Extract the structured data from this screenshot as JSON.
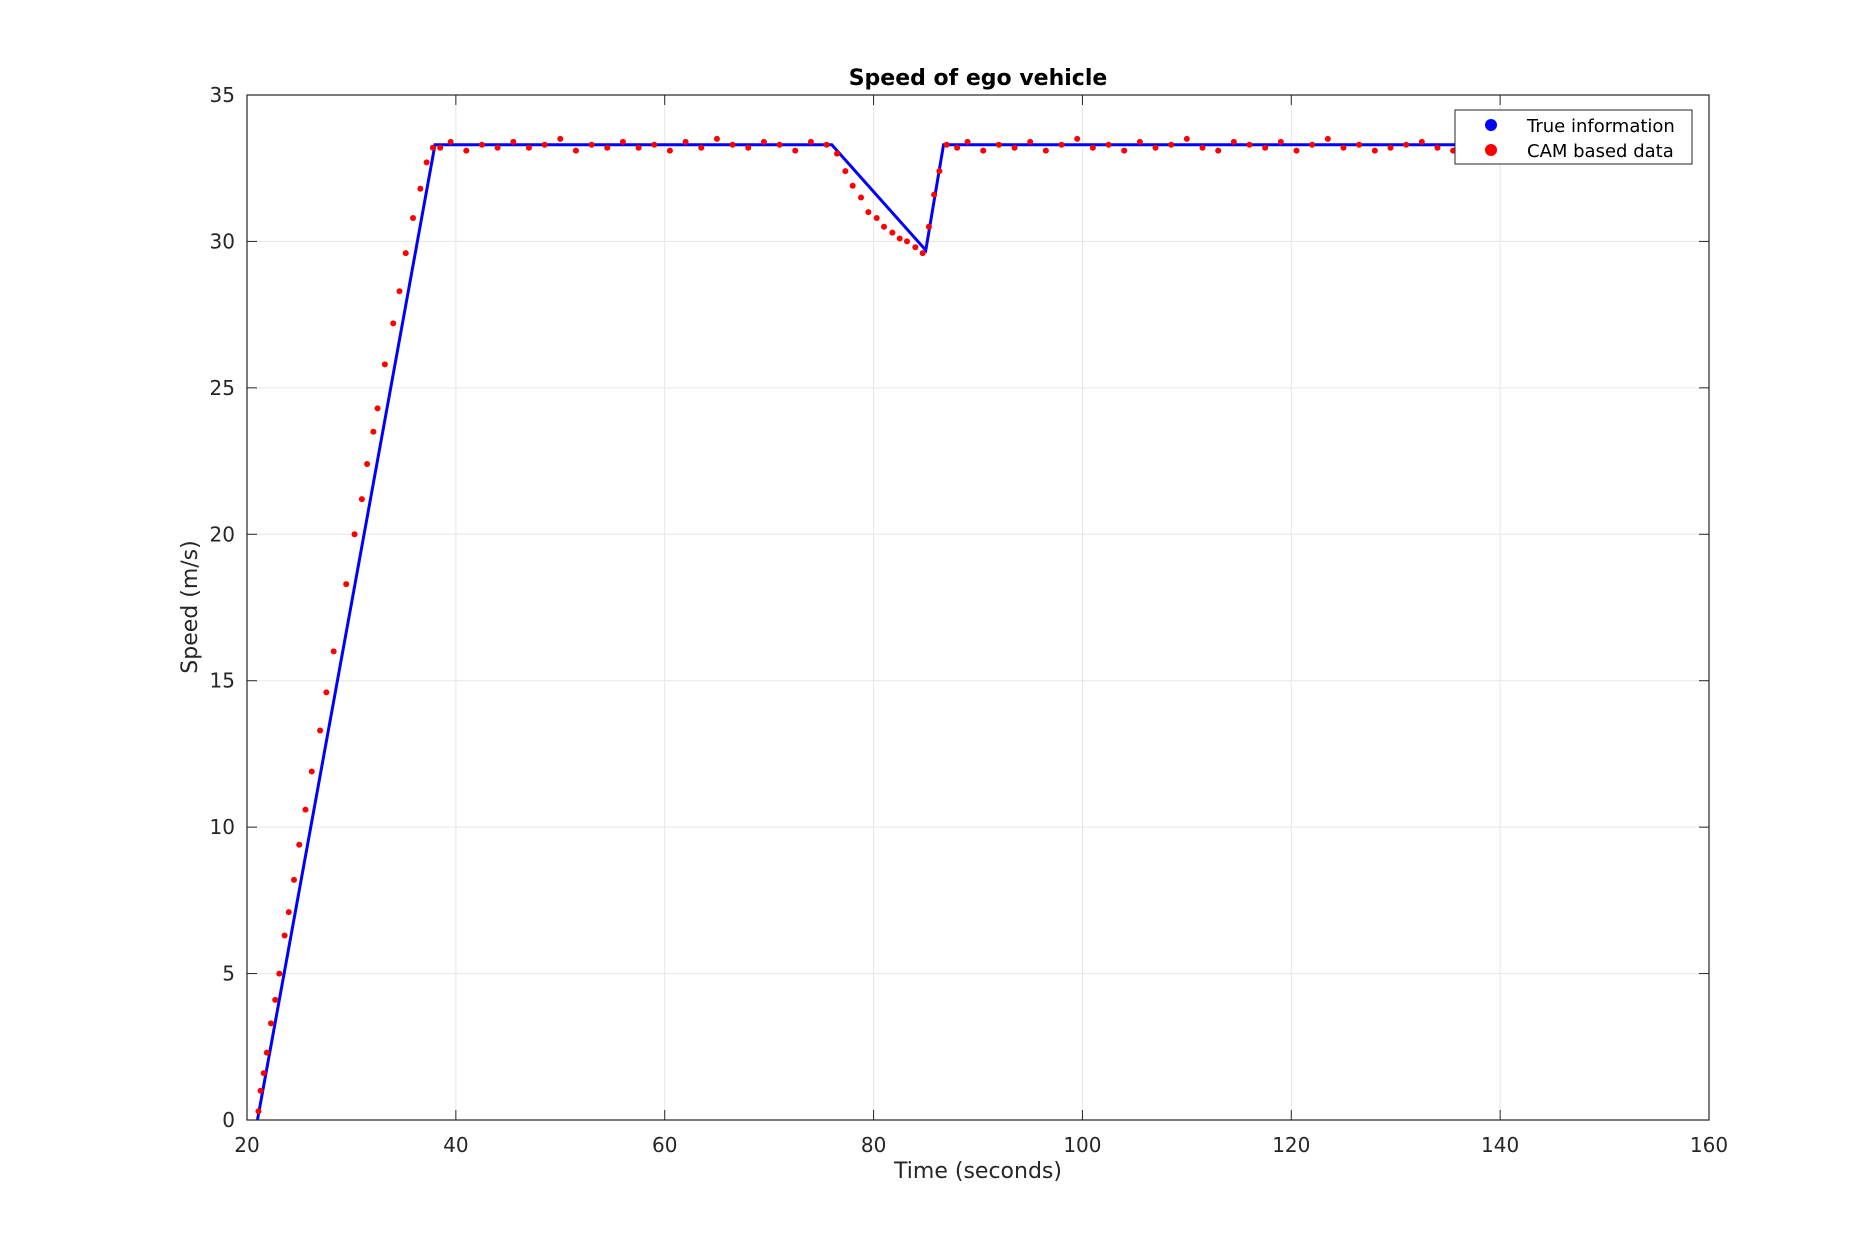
{
  "chart_data": {
    "type": "scatter",
    "title": "Speed of ego vehicle",
    "xlabel": "Time (seconds)",
    "ylabel": "Speed (m/s)",
    "xlim": [
      20,
      160
    ],
    "ylim": [
      0,
      35
    ],
    "xticks": [
      20,
      40,
      60,
      80,
      100,
      120,
      140,
      160
    ],
    "yticks": [
      0,
      5,
      10,
      15,
      20,
      25,
      30,
      35
    ],
    "grid": true,
    "legend_position": "top-right",
    "series": [
      {
        "name": "True information",
        "color": "#0000ff",
        "marker": "dot",
        "connected": true,
        "x": [
          21,
          38,
          76,
          85,
          86.7,
          136.6
        ],
        "y": [
          0,
          33.3,
          33.3,
          29.7,
          33.3,
          33.3
        ]
      },
      {
        "name": "CAM based data",
        "color": "#ff0000",
        "marker": "dot",
        "x": [
          21.1,
          21.3,
          21.6,
          21.9,
          22.3,
          22.7,
          23.1,
          23.6,
          24.0,
          24.5,
          25.0,
          25.6,
          26.2,
          27.0,
          27.6,
          28.3,
          29.5,
          30.3,
          31.0,
          31.5,
          32.1,
          32.5,
          33.2,
          34.0,
          34.6,
          35.2,
          35.9,
          36.6,
          37.2,
          37.8,
          38.5,
          39.5,
          41.0,
          42.5,
          44.0,
          45.5,
          47.0,
          48.5,
          50.0,
          51.5,
          53.0,
          54.5,
          56.0,
          57.5,
          59.0,
          60.5,
          62.0,
          63.5,
          65.0,
          66.5,
          68.0,
          69.5,
          71.0,
          72.5,
          74.0,
          75.5,
          76.5,
          77.3,
          78.0,
          78.8,
          79.5,
          80.3,
          81.0,
          81.8,
          82.5,
          83.2,
          84.0,
          84.7,
          85.3,
          85.8,
          86.3,
          87.0,
          88.0,
          89.0,
          90.5,
          92.0,
          93.5,
          95.0,
          96.5,
          98.0,
          99.5,
          101.0,
          102.5,
          104.0,
          105.5,
          107.0,
          108.5,
          110.0,
          111.5,
          113.0,
          114.5,
          116.0,
          117.5,
          119.0,
          120.5,
          122.0,
          123.5,
          125.0,
          126.5,
          128.0,
          129.5,
          131.0,
          132.5,
          134.0,
          135.5,
          136.4
        ],
        "y": [
          0.3,
          1.0,
          1.6,
          2.3,
          3.3,
          4.1,
          5.0,
          6.3,
          7.1,
          8.2,
          9.4,
          10.6,
          11.9,
          13.3,
          14.6,
          16.0,
          18.3,
          20.0,
          21.2,
          22.4,
          23.5,
          24.3,
          25.8,
          27.2,
          28.3,
          29.6,
          30.8,
          31.8,
          32.7,
          33.2,
          33.2,
          33.4,
          33.1,
          33.3,
          33.2,
          33.4,
          33.2,
          33.3,
          33.5,
          33.1,
          33.3,
          33.2,
          33.4,
          33.2,
          33.3,
          33.1,
          33.4,
          33.2,
          33.5,
          33.3,
          33.2,
          33.4,
          33.3,
          33.1,
          33.4,
          33.3,
          33.0,
          32.4,
          31.9,
          31.5,
          31.0,
          30.8,
          30.5,
          30.3,
          30.1,
          30.0,
          29.8,
          29.6,
          30.5,
          31.6,
          32.4,
          33.3,
          33.2,
          33.4,
          33.1,
          33.3,
          33.2,
          33.4,
          33.1,
          33.3,
          33.5,
          33.2,
          33.3,
          33.1,
          33.4,
          33.2,
          33.3,
          33.5,
          33.2,
          33.1,
          33.4,
          33.3,
          33.2,
          33.4,
          33.1,
          33.3,
          33.5,
          33.2,
          33.3,
          33.1,
          33.2,
          33.3,
          33.4,
          33.2,
          33.1,
          33.3
        ]
      }
    ]
  }
}
